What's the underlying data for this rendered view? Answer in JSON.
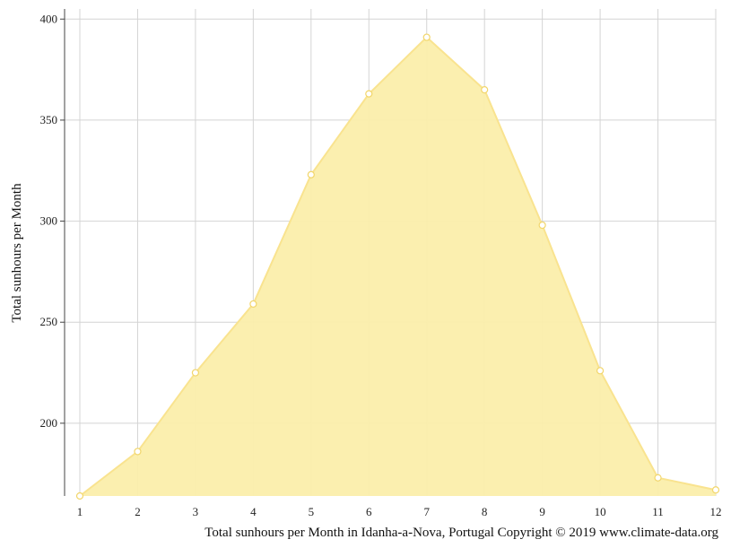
{
  "chart_data": {
    "type": "area",
    "x": [
      1,
      2,
      3,
      4,
      5,
      6,
      7,
      8,
      9,
      10,
      11,
      12
    ],
    "series": [
      {
        "values": [
          164,
          186,
          225,
          259,
          323,
          363,
          391,
          365,
          298,
          226,
          173,
          167
        ]
      }
    ],
    "xlabel": "",
    "ylabel": "Total sunhours per Month",
    "ylim": [
      164,
      405
    ],
    "yticks": [
      200,
      250,
      300,
      350,
      400
    ],
    "grid": true,
    "colors": {
      "fill": "#fbeeab",
      "line": "#f9e38f",
      "marker_fill": "#ffffff",
      "marker_stroke": "#f2d66b",
      "grid": "#d4d4d4"
    }
  },
  "caption": "Total sunhours per Month in Idanha-a-Nova, Portugal Copyright © 2019 www.climate-data.org"
}
